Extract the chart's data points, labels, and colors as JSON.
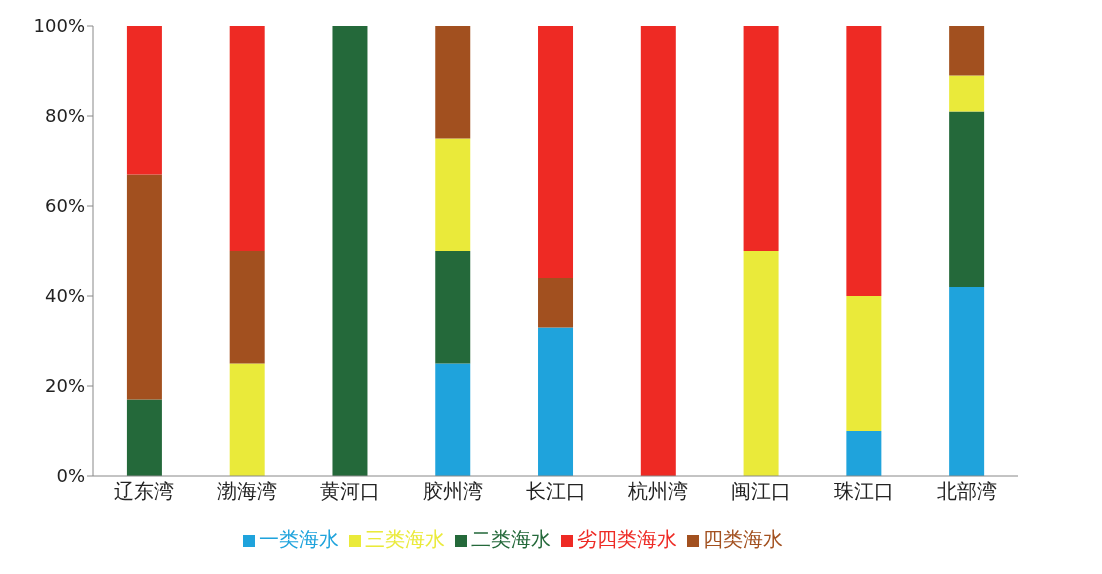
{
  "chart_data": {
    "type": "bar",
    "stacked": true,
    "categories": [
      "辽东湾",
      "渤海湾",
      "黄河口",
      "胶州湾",
      "长江口",
      "杭州湾",
      "闽江口",
      "珠江口",
      "北部湾"
    ],
    "series": [
      {
        "name": "一类海水",
        "color": "#1fa3dc",
        "values": [
          0,
          0,
          0,
          25,
          33,
          0,
          0,
          10,
          42
        ]
      },
      {
        "name": "二类海水",
        "color": "#24693a",
        "values": [
          17,
          0,
          100,
          25,
          0,
          0,
          0,
          0,
          39
        ]
      },
      {
        "name": "三类海水",
        "color": "#eaea3a",
        "values": [
          0,
          25,
          0,
          25,
          0,
          0,
          50,
          30,
          8
        ]
      },
      {
        "name": "四类海水",
        "color": "#a2501f",
        "values": [
          50,
          25,
          0,
          25,
          11,
          0,
          0,
          0,
          11
        ]
      },
      {
        "name": "劣四类海水",
        "color": "#ee2a24",
        "values": [
          33,
          50,
          0,
          0,
          56,
          100,
          50,
          60,
          0
        ]
      }
    ],
    "ylim": [
      0,
      100
    ],
    "yticks": [
      {
        "value": 0,
        "label": "0%"
      },
      {
        "value": 20,
        "label": "20%"
      },
      {
        "value": 40,
        "label": "40%"
      },
      {
        "value": 60,
        "label": "60%"
      },
      {
        "value": 80,
        "label": "80%"
      },
      {
        "value": 100,
        "label": "100%"
      }
    ],
    "grid": false,
    "legend": "bottom"
  }
}
